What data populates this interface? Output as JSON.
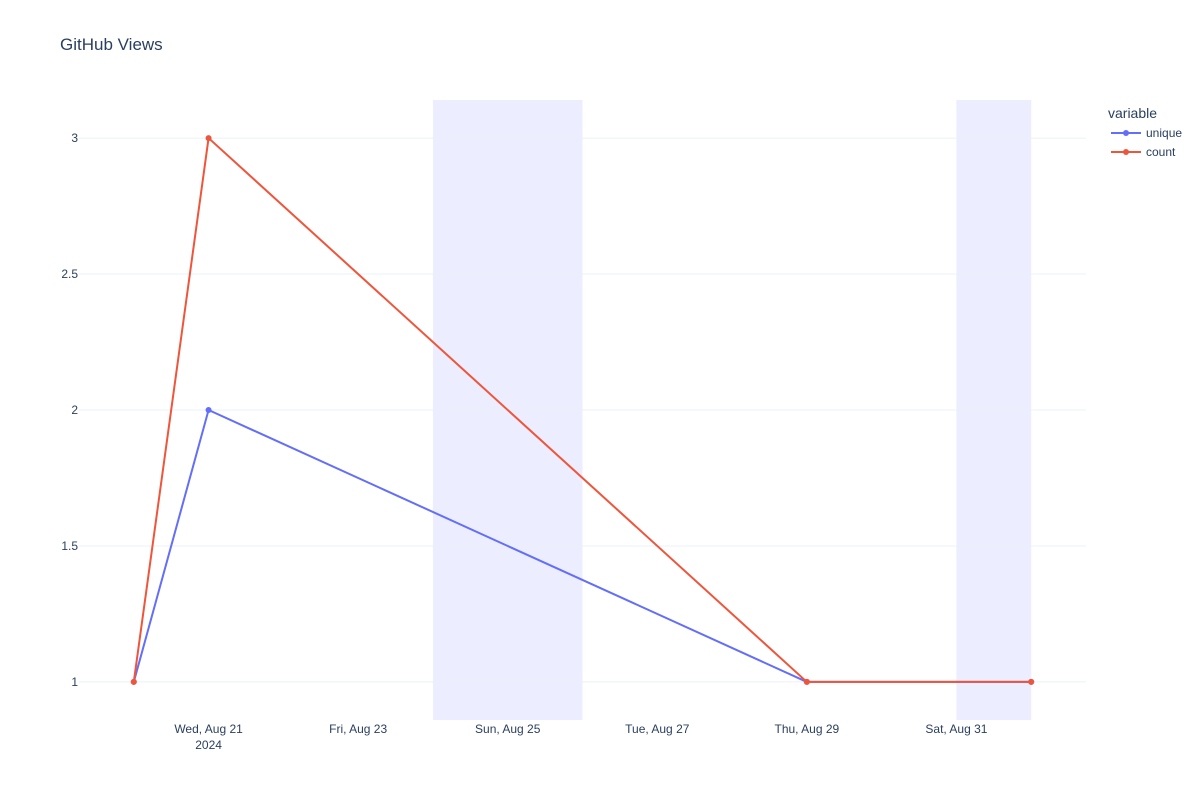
{
  "chart_data": {
    "type": "line",
    "title": "GitHub Views",
    "xlabel": "",
    "ylabel": "",
    "x": [
      "2024-08-20",
      "2024-08-21",
      "2024-08-29",
      "2024-09-01"
    ],
    "series": [
      {
        "name": "unique",
        "color": "#636efa",
        "values": [
          1,
          2,
          1,
          1
        ]
      },
      {
        "name": "count",
        "color": "#ef553b",
        "values": [
          1,
          3,
          1,
          1
        ]
      }
    ],
    "xlim": [
      "2024-08-19",
      "2024-09-02"
    ],
    "ylim": [
      0.86,
      3.14
    ],
    "y_ticks": [
      1,
      1.5,
      2,
      2.5,
      3
    ],
    "x_ticks": [
      {
        "date": "2024-08-21",
        "label": "Wed, Aug 21",
        "sublabel": "2024"
      },
      {
        "date": "2024-08-23",
        "label": "Fri, Aug 23",
        "sublabel": ""
      },
      {
        "date": "2024-08-25",
        "label": "Sun, Aug 25",
        "sublabel": ""
      },
      {
        "date": "2024-08-27",
        "label": "Tue, Aug 27",
        "sublabel": ""
      },
      {
        "date": "2024-08-29",
        "label": "Thu, Aug 29",
        "sublabel": ""
      },
      {
        "date": "2024-08-31",
        "label": "Sat, Aug 31",
        "sublabel": ""
      }
    ],
    "shaded_ranges": [
      {
        "start": "2024-08-24",
        "end": "2024-08-26"
      },
      {
        "start": "2024-08-31",
        "end": "2024-09-01"
      }
    ],
    "grid": true,
    "legend_title": "variable",
    "legend_position": "top-right",
    "shade_color": "#636efa"
  }
}
